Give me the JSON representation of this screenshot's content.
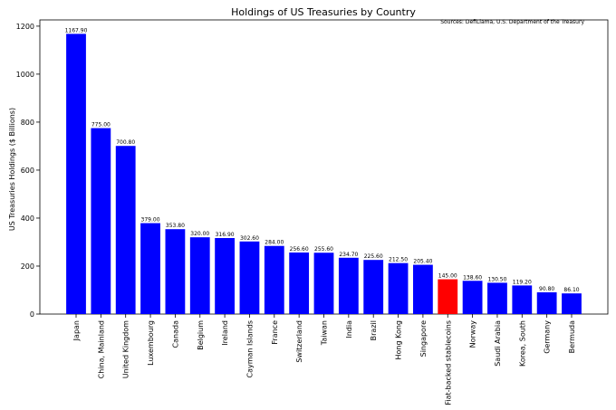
{
  "chart_data": {
    "type": "bar",
    "title": "Holdings of US Treasuries by Country",
    "source": "Sources: DefiLlama, U.S. Department of the Treasury",
    "xlabel": "",
    "ylabel": "US Treasuries Holdings ($ Billions)",
    "ylim": [
      0,
      1226
    ],
    "yticks": [
      0,
      200,
      400,
      600,
      800,
      1000,
      1200
    ],
    "grid": false,
    "categories": [
      "Japan",
      "China, Mainland",
      "United Kingdom",
      "Luxembourg",
      "Canada",
      "Belgium",
      "Ireland",
      "Cayman Islands",
      "France",
      "Switzerland",
      "Taiwan",
      "India",
      "Brazil",
      "Hong Kong",
      "Singapore",
      "Fiat-backed stablecoins",
      "Norway",
      "Saudi Arabia",
      "Korea, South",
      "Germany",
      "Bermuda"
    ],
    "values": [
      1167.9,
      775.0,
      700.8,
      379.0,
      353.8,
      320.0,
      316.9,
      302.6,
      284.0,
      256.6,
      255.6,
      234.7,
      225.6,
      212.5,
      205.4,
      145.0,
      138.6,
      130.5,
      119.2,
      90.8,
      86.1
    ],
    "data_labels": [
      "1167.90",
      "775.00",
      "700.80",
      "379.00",
      "353.80",
      "320.00",
      "316.90",
      "302.60",
      "284.00",
      "256.60",
      "255.60",
      "234.70",
      "225.60",
      "212.50",
      "205.40",
      "145.00",
      "138.60",
      "130.50",
      "119.20",
      "90.80",
      "86.10"
    ],
    "colors": {
      "default": "#0000ff",
      "highlight": "#ff0000",
      "highlight_category": "Fiat-backed stablecoins"
    }
  }
}
